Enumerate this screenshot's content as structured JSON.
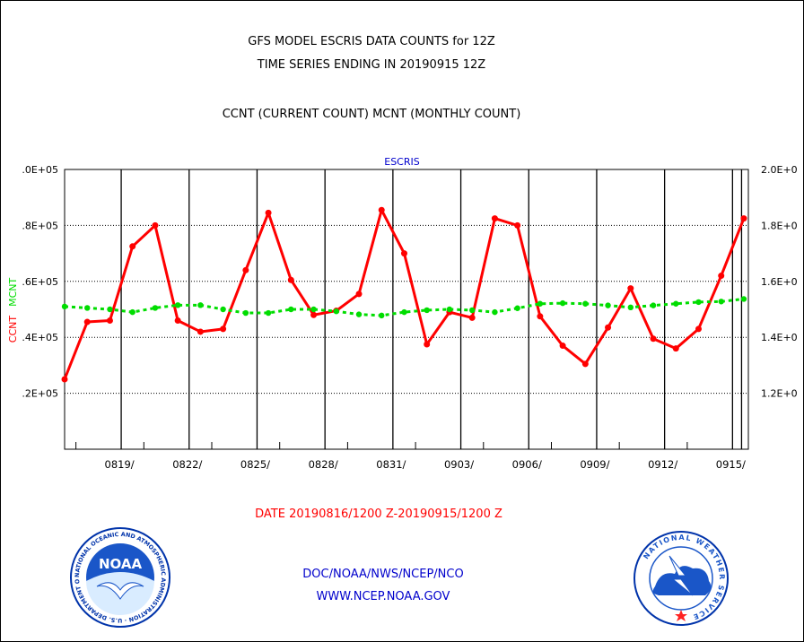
{
  "page": {
    "title_line1": "GFS MODEL ESCRIS DATA COUNTS for 12Z",
    "title_line2": "TIME SERIES ENDING IN 20190915 12Z",
    "subtitle": "CCNT (CURRENT COUNT) MCNT (MONTHLY COUNT)",
    "date_range": "DATE 20190816/1200 Z-20190915/1200 Z",
    "footer_org": "DOC/NOAA/NWS/NCEP/NCO",
    "footer_url": "WWW.NCEP.NOAA.GOV",
    "noaa_logo_text": "NOAA",
    "noaa_logo_ring_text": "NATIONAL OCEANIC AND ATMOSPHERIC ADMINISTRATION · U.S. DEPARTMENT OF COMMERCE",
    "nws_logo_ring_text": "NATIONAL WEATHER SERVICE"
  },
  "colors": {
    "ccnt": "#ff0000",
    "mcnt": "#00dd00",
    "panel_title": "#0000cc",
    "grid": "#000000"
  },
  "chart_data": {
    "type": "line",
    "title": "ESCRIS",
    "grid": true,
    "left_axis_label_parts": [
      {
        "text": "CCNT",
        "color": "#ff0000"
      },
      {
        "text": "MCNT",
        "color": "#00dd00"
      }
    ],
    "left_ylim": [
      100000,
      200000
    ],
    "right_ylim": [
      100000,
      200000
    ],
    "left_ticks": [
      ".2E+05",
      ".4E+05",
      ".6E+05",
      ".8E+05",
      ".0E+05"
    ],
    "left_tick_values": [
      120000,
      140000,
      160000,
      180000,
      200000
    ],
    "right_ticks": [
      "1.2E+0",
      "1.4E+0",
      "1.6E+0",
      "1.8E+0",
      "2.0E+0"
    ],
    "right_tick_values": [
      120000,
      140000,
      160000,
      180000,
      200000
    ],
    "xlim": [
      0,
      30.2
    ],
    "x_ticks": [
      "0819/",
      "0822/",
      "0825/",
      "0828/",
      "0831/",
      "0903/",
      "0906/",
      "0909/",
      "0912/",
      "0915/"
    ],
    "x_tick_positions": [
      2.5,
      5.5,
      8.5,
      11.5,
      14.5,
      17.5,
      20.5,
      23.5,
      26.5,
      29.5
    ],
    "x_minor_ticks": [
      0.5,
      3.5,
      6.5,
      9.5,
      12.5,
      15.5,
      18.5,
      21.5,
      24.5,
      27.5
    ],
    "x_end_marker": 29.9,
    "series": [
      {
        "name": "CCNT",
        "color": "#ff0000",
        "x": [
          0,
          1,
          2,
          3,
          4,
          5,
          6,
          7,
          8,
          9,
          10,
          11,
          12,
          13,
          14,
          15,
          16,
          17,
          18,
          19,
          20,
          21,
          22,
          23,
          24,
          25,
          26,
          27,
          28,
          29,
          30
        ],
        "values": [
          125000,
          145500,
          146000,
          172500,
          180000,
          146000,
          142000,
          143000,
          164000,
          184500,
          160500,
          148000,
          149500,
          155500,
          185500,
          170000,
          137500,
          149000,
          147000,
          182500,
          180000,
          147500,
          137000,
          130500,
          143500,
          157500,
          139500,
          136000,
          143000,
          162000,
          182500
        ]
      },
      {
        "name": "MCNT",
        "color": "#00dd00",
        "x": [
          0,
          1,
          2,
          3,
          4,
          5,
          6,
          7,
          8,
          9,
          10,
          11,
          12,
          13,
          14,
          15,
          16,
          17,
          18,
          19,
          20,
          21,
          22,
          23,
          24,
          25,
          26,
          27,
          28,
          29,
          30
        ],
        "values": [
          151000,
          150500,
          150000,
          149000,
          150500,
          151500,
          151500,
          150000,
          148700,
          148700,
          150000,
          150000,
          149300,
          148200,
          147800,
          149000,
          149700,
          150000,
          149700,
          149000,
          150400,
          152000,
          152200,
          152000,
          151400,
          150700,
          151400,
          152000,
          152600,
          152800,
          153700
        ]
      }
    ]
  }
}
